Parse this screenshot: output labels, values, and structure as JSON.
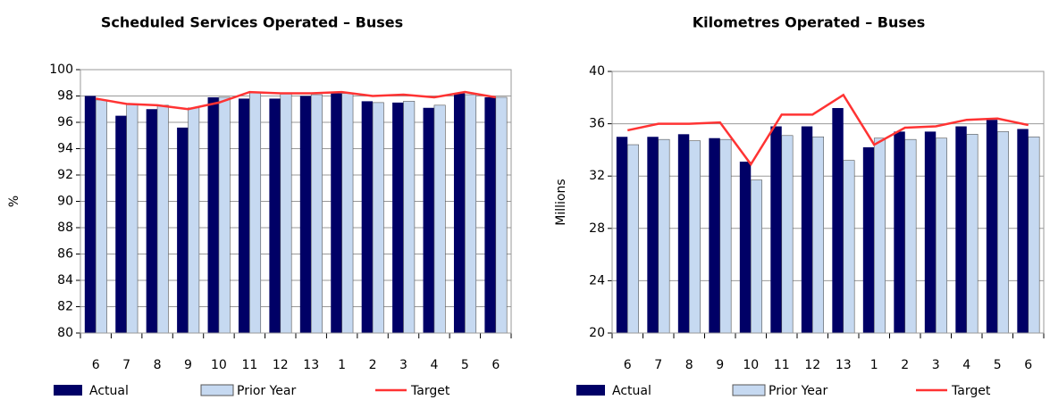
{
  "chart_data": [
    {
      "type": "bar",
      "title": "Scheduled Services Operated – Buses",
      "y_label": "%",
      "categories": [
        "6",
        "7",
        "8",
        "9",
        "10",
        "11",
        "12",
        "13",
        "1",
        "2",
        "3",
        "4",
        "5",
        "6"
      ],
      "series": [
        {
          "name": "Actual",
          "color": "#000066",
          "type": "bar",
          "values": [
            98,
            96.5,
            97,
            95.6,
            97.9,
            97.8,
            97.8,
            98,
            98.2,
            97.6,
            97.5,
            97.1,
            98.2,
            97.9
          ]
        },
        {
          "name": "Prior Year",
          "color": "#c6d9f1",
          "type": "bar",
          "values": [
            97.7,
            97.4,
            97.3,
            97.1,
            97.9,
            98.3,
            98.2,
            98.1,
            98.2,
            97.5,
            97.6,
            97.3,
            98.1,
            97.9
          ]
        },
        {
          "name": "Target",
          "color": "#ff3333",
          "type": "line",
          "values": [
            97.8,
            97.4,
            97.3,
            97.0,
            97.5,
            98.3,
            98.2,
            98.2,
            98.3,
            98.0,
            98.1,
            97.9,
            98.3,
            97.9
          ]
        }
      ],
      "ylim": [
        80,
        100
      ],
      "yticks": [
        80,
        82,
        84,
        86,
        88,
        90,
        92,
        94,
        96,
        98,
        100
      ],
      "grid": true,
      "legend": "bottom"
    },
    {
      "type": "bar",
      "title": "Kilometres Operated – Buses",
      "y_label": "Millions",
      "categories": [
        "6",
        "7",
        "8",
        "9",
        "10",
        "11",
        "12",
        "13",
        "1",
        "2",
        "3",
        "4",
        "5",
        "6"
      ],
      "series": [
        {
          "name": "Actual",
          "color": "#000066",
          "type": "bar",
          "values": [
            35.0,
            35.0,
            35.2,
            34.9,
            33.1,
            35.8,
            35.8,
            37.2,
            34.2,
            35.4,
            35.4,
            35.8,
            36.3,
            35.6
          ]
        },
        {
          "name": "Prior Year",
          "color": "#c6d9f1",
          "type": "bar",
          "values": [
            34.4,
            34.8,
            34.7,
            34.8,
            31.7,
            35.1,
            35.0,
            33.2,
            34.9,
            34.8,
            34.9,
            35.2,
            35.4,
            35.0
          ]
        },
        {
          "name": "Target",
          "color": "#ff3333",
          "type": "line",
          "values": [
            35.5,
            36.0,
            36.0,
            36.1,
            32.9,
            36.7,
            36.7,
            38.2,
            34.4,
            35.7,
            35.8,
            36.3,
            36.4,
            35.9
          ]
        }
      ],
      "ylim": [
        20,
        40
      ],
      "yticks": [
        20,
        24,
        28,
        32,
        36,
        40
      ],
      "grid": true,
      "legend": "bottom"
    }
  ]
}
